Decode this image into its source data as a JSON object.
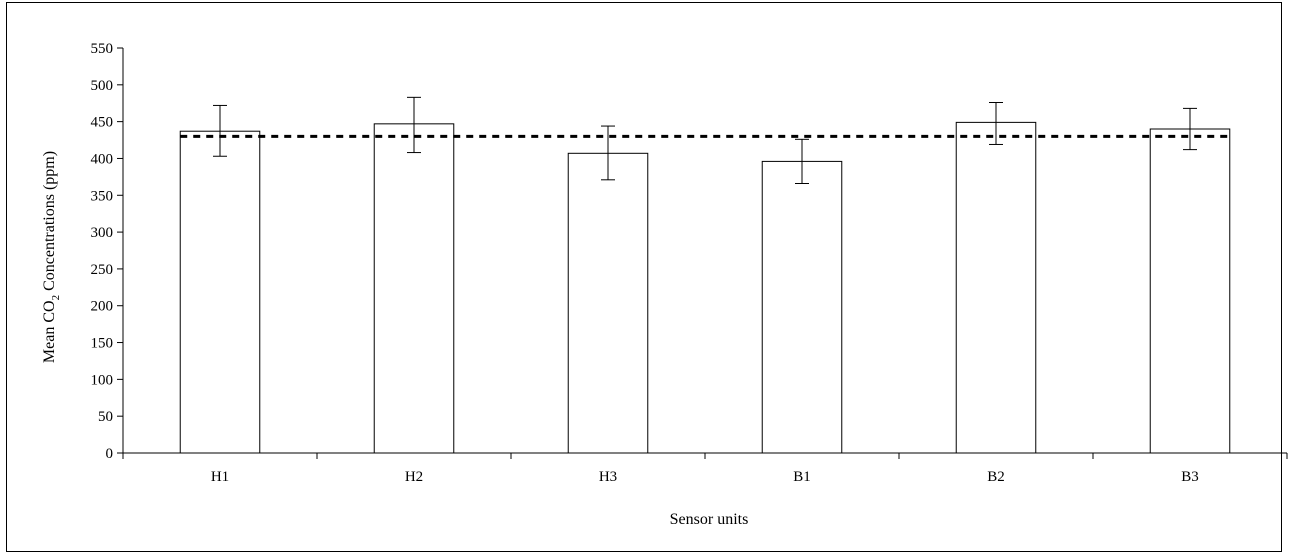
{
  "chart_data": {
    "type": "bar",
    "categories": [
      "H1",
      "H2",
      "H3",
      "B1",
      "B2",
      "B3"
    ],
    "values": [
      437,
      447,
      407,
      396,
      449,
      440
    ],
    "error_low": [
      403,
      408,
      371,
      366,
      419,
      412
    ],
    "error_high": [
      472,
      483,
      444,
      426,
      476,
      468
    ],
    "reference_line": 430,
    "title": "",
    "xlabel": "Sensor units",
    "ylabel_parts": {
      "before": "Mean CO",
      "sub": "2",
      "after": " Concentrations (ppm)"
    },
    "ylim": [
      0,
      550
    ],
    "yticks": [
      0,
      50,
      100,
      150,
      200,
      250,
      300,
      350,
      400,
      450,
      500,
      550
    ],
    "grid": false,
    "colors": {
      "bar_fill": "#ffffff",
      "bar_stroke": "#000000",
      "reference_line": "#000000"
    }
  }
}
